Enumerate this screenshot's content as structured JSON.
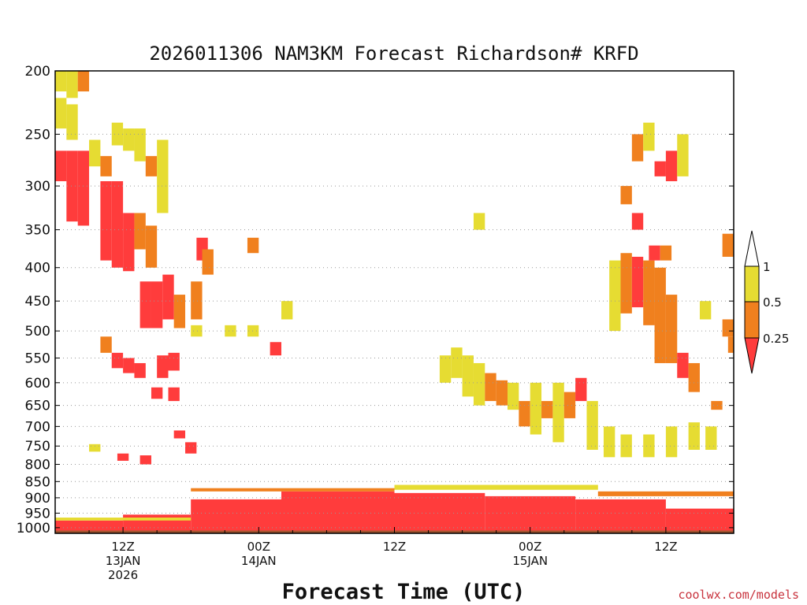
{
  "chart_data": {
    "type": "heatmap",
    "title": "2026011306 NAM3KM Forecast Richardson# KRFD",
    "xlabel": "Forecast Time (UTC)",
    "ylabel": "",
    "credit": "coolwx.com/models",
    "y_scale": "log-pressure",
    "y_axis_unit": "hPa",
    "ylim": [
      1020,
      200
    ],
    "xlim_hours": [
      0,
      60
    ],
    "grid": "dotted horizontal at pressure levels",
    "y_ticks": [
      200,
      250,
      300,
      350,
      400,
      450,
      500,
      550,
      600,
      650,
      700,
      750,
      800,
      850,
      900,
      950,
      1000
    ],
    "x_ticks": [
      {
        "hour": 6,
        "line1": "12Z",
        "line2": "13JAN",
        "line3": "2026"
      },
      {
        "hour": 18,
        "line1": "00Z",
        "line2": "14JAN",
        "line3": ""
      },
      {
        "hour": 30,
        "line1": "12Z",
        "line2": "",
        "line3": ""
      },
      {
        "hour": 42,
        "line1": "00Z",
        "line2": "15JAN",
        "line3": ""
      },
      {
        "hour": 54,
        "line1": "12Z",
        "line2": "",
        "line3": ""
      }
    ],
    "color_scale": {
      "orientation": "vertical",
      "placement": "right",
      "levels": [
        {
          "range": "< 0.25",
          "color": "#ff3c3c"
        },
        {
          "range": "0.25 - 0.5",
          "color": "#f0801e"
        },
        {
          "range": "0.5 - 1",
          "color": "#e6dc32"
        },
        {
          "range": "> 1",
          "color": "#ffffff"
        }
      ],
      "labels": [
        "1",
        "0.5",
        "0.25"
      ]
    },
    "ground_color": "#a0522d",
    "cells": [
      {
        "t": 0.5,
        "p0": 200,
        "p1": 215,
        "v": "y"
      },
      {
        "t": 1.5,
        "p0": 200,
        "p1": 220,
        "v": "y"
      },
      {
        "t": 2.5,
        "p0": 200,
        "p1": 215,
        "v": "o"
      },
      {
        "t": 0.5,
        "p0": 220,
        "p1": 245,
        "v": "y"
      },
      {
        "t": 1.5,
        "p0": 225,
        "p1": 255,
        "v": "y"
      },
      {
        "t": 0.5,
        "p0": 265,
        "p1": 295,
        "v": "r"
      },
      {
        "t": 1.5,
        "p0": 265,
        "p1": 340,
        "v": "r"
      },
      {
        "t": 2.5,
        "p0": 265,
        "p1": 345,
        "v": "r"
      },
      {
        "t": 3.5,
        "p0": 255,
        "p1": 280,
        "v": "y"
      },
      {
        "t": 4.5,
        "p0": 270,
        "p1": 290,
        "v": "o"
      },
      {
        "t": 4.5,
        "p0": 295,
        "p1": 390,
        "v": "r"
      },
      {
        "t": 5.5,
        "p0": 295,
        "p1": 400,
        "v": "r"
      },
      {
        "t": 6.5,
        "p0": 330,
        "p1": 405,
        "v": "r"
      },
      {
        "t": 7.5,
        "p0": 330,
        "p1": 375,
        "v": "o"
      },
      {
        "t": 8.5,
        "p0": 345,
        "p1": 400,
        "v": "o"
      },
      {
        "t": 5.5,
        "p0": 240,
        "p1": 260,
        "v": "y"
      },
      {
        "t": 6.5,
        "p0": 245,
        "p1": 265,
        "v": "y"
      },
      {
        "t": 7.5,
        "p0": 245,
        "p1": 275,
        "v": "y"
      },
      {
        "t": 8.5,
        "p0": 270,
        "p1": 290,
        "v": "o"
      },
      {
        "t": 9.5,
        "p0": 255,
        "p1": 330,
        "v": "y"
      },
      {
        "t": 8.0,
        "p0": 420,
        "p1": 495,
        "v": "r"
      },
      {
        "t": 9.0,
        "p0": 420,
        "p1": 495,
        "v": "r"
      },
      {
        "t": 10.0,
        "p0": 410,
        "p1": 480,
        "v": "r"
      },
      {
        "t": 11.0,
        "p0": 440,
        "p1": 495,
        "v": "o"
      },
      {
        "t": 12.5,
        "p0": 420,
        "p1": 480,
        "v": "o"
      },
      {
        "t": 13.0,
        "p0": 360,
        "p1": 390,
        "v": "r"
      },
      {
        "t": 13.5,
        "p0": 375,
        "p1": 410,
        "v": "o"
      },
      {
        "t": 17.5,
        "p0": 360,
        "p1": 380,
        "v": "o"
      },
      {
        "t": 12.5,
        "p0": 490,
        "p1": 510,
        "v": "y"
      },
      {
        "t": 15.5,
        "p0": 490,
        "p1": 510,
        "v": "y"
      },
      {
        "t": 17.5,
        "p0": 490,
        "p1": 510,
        "v": "y"
      },
      {
        "t": 20.5,
        "p0": 450,
        "p1": 480,
        "v": "y"
      },
      {
        "t": 19.5,
        "p0": 520,
        "p1": 545,
        "v": "r"
      },
      {
        "t": 4.5,
        "p0": 510,
        "p1": 540,
        "v": "o"
      },
      {
        "t": 5.5,
        "p0": 540,
        "p1": 570,
        "v": "r"
      },
      {
        "t": 6.5,
        "p0": 550,
        "p1": 580,
        "v": "r"
      },
      {
        "t": 7.5,
        "p0": 560,
        "p1": 590,
        "v": "r"
      },
      {
        "t": 9.5,
        "p0": 545,
        "p1": 590,
        "v": "r"
      },
      {
        "t": 10.5,
        "p0": 540,
        "p1": 575,
        "v": "r"
      },
      {
        "t": 9.0,
        "p0": 610,
        "p1": 635,
        "v": "r"
      },
      {
        "t": 10.5,
        "p0": 610,
        "p1": 640,
        "v": "r"
      },
      {
        "t": 11.0,
        "p0": 710,
        "p1": 730,
        "v": "r"
      },
      {
        "t": 12.0,
        "p0": 740,
        "p1": 770,
        "v": "r"
      },
      {
        "t": 8.0,
        "p0": 775,
        "p1": 800,
        "v": "r"
      },
      {
        "t": 6.0,
        "p0": 770,
        "p1": 790,
        "v": "r"
      },
      {
        "t": 3.5,
        "p0": 745,
        "p1": 765,
        "v": "y"
      },
      {
        "t": 34.5,
        "p0": 545,
        "p1": 600,
        "v": "y"
      },
      {
        "t": 35.5,
        "p0": 530,
        "p1": 590,
        "v": "y"
      },
      {
        "t": 36.5,
        "p0": 545,
        "p1": 630,
        "v": "y"
      },
      {
        "t": 37.5,
        "p0": 560,
        "p1": 650,
        "v": "y"
      },
      {
        "t": 38.5,
        "p0": 580,
        "p1": 640,
        "v": "o"
      },
      {
        "t": 39.5,
        "p0": 595,
        "p1": 650,
        "v": "o"
      },
      {
        "t": 40.5,
        "p0": 600,
        "p1": 660,
        "v": "y"
      },
      {
        "t": 41.5,
        "p0": 640,
        "p1": 700,
        "v": "o"
      },
      {
        "t": 42.5,
        "p0": 600,
        "p1": 720,
        "v": "y"
      },
      {
        "t": 43.5,
        "p0": 640,
        "p1": 680,
        "v": "o"
      },
      {
        "t": 44.5,
        "p0": 600,
        "p1": 740,
        "v": "y"
      },
      {
        "t": 45.5,
        "p0": 620,
        "p1": 680,
        "v": "o"
      },
      {
        "t": 46.5,
        "p0": 590,
        "p1": 640,
        "v": "r"
      },
      {
        "t": 47.5,
        "p0": 640,
        "p1": 760,
        "v": "y"
      },
      {
        "t": 49.0,
        "p0": 700,
        "p1": 780,
        "v": "y"
      },
      {
        "t": 50.5,
        "p0": 720,
        "p1": 780,
        "v": "y"
      },
      {
        "t": 52.5,
        "p0": 720,
        "p1": 780,
        "v": "y"
      },
      {
        "t": 54.5,
        "p0": 700,
        "p1": 780,
        "v": "y"
      },
      {
        "t": 56.5,
        "p0": 690,
        "p1": 760,
        "v": "y"
      },
      {
        "t": 58.0,
        "p0": 700,
        "p1": 760,
        "v": "y"
      },
      {
        "t": 37.5,
        "p0": 330,
        "p1": 350,
        "v": "y"
      },
      {
        "t": 51.5,
        "p0": 250,
        "p1": 275,
        "v": "o"
      },
      {
        "t": 52.5,
        "p0": 240,
        "p1": 265,
        "v": "y"
      },
      {
        "t": 53.5,
        "p0": 275,
        "p1": 290,
        "v": "r"
      },
      {
        "t": 54.5,
        "p0": 265,
        "p1": 295,
        "v": "r"
      },
      {
        "t": 55.5,
        "p0": 250,
        "p1": 290,
        "v": "y"
      },
      {
        "t": 51.5,
        "p0": 330,
        "p1": 350,
        "v": "r"
      },
      {
        "t": 50.5,
        "p0": 300,
        "p1": 320,
        "v": "o"
      },
      {
        "t": 49.5,
        "p0": 390,
        "p1": 500,
        "v": "y"
      },
      {
        "t": 50.5,
        "p0": 380,
        "p1": 470,
        "v": "o"
      },
      {
        "t": 51.5,
        "p0": 385,
        "p1": 460,
        "v": "r"
      },
      {
        "t": 52.5,
        "p0": 390,
        "p1": 490,
        "v": "o"
      },
      {
        "t": 53.5,
        "p0": 400,
        "p1": 560,
        "v": "o"
      },
      {
        "t": 54.5,
        "p0": 440,
        "p1": 560,
        "v": "o"
      },
      {
        "t": 55.5,
        "p0": 540,
        "p1": 590,
        "v": "r"
      },
      {
        "t": 56.5,
        "p0": 560,
        "p1": 620,
        "v": "o"
      },
      {
        "t": 53.0,
        "p0": 370,
        "p1": 390,
        "v": "r"
      },
      {
        "t": 54.0,
        "p0": 370,
        "p1": 390,
        "v": "o"
      },
      {
        "t": 57.5,
        "p0": 450,
        "p1": 480,
        "v": "y"
      },
      {
        "t": 59.5,
        "p0": 480,
        "p1": 510,
        "v": "o"
      },
      {
        "t": 60.0,
        "p0": 510,
        "p1": 540,
        "v": "o"
      },
      {
        "t": 58.5,
        "p0": 640,
        "p1": 660,
        "v": "o"
      },
      {
        "t": 59.5,
        "p0": 355,
        "p1": 385,
        "v": "o"
      }
    ],
    "low_bands": [
      {
        "t0": 0,
        "t1": 6,
        "p_top": 975,
        "p_bot": 1010,
        "v": "r"
      },
      {
        "t0": 6,
        "t1": 12,
        "p_top": 955,
        "p_bot": 1010,
        "v": "r"
      },
      {
        "t0": 12,
        "t1": 20,
        "p_top": 905,
        "p_bot": 1010,
        "v": "r"
      },
      {
        "t0": 20,
        "t1": 30,
        "p_top": 880,
        "p_bot": 1010,
        "v": "r"
      },
      {
        "t0": 30,
        "t1": 38,
        "p_top": 885,
        "p_bot": 1010,
        "v": "r"
      },
      {
        "t0": 38,
        "t1": 46,
        "p_top": 895,
        "p_bot": 1010,
        "v": "r"
      },
      {
        "t0": 46,
        "t1": 54,
        "p_top": 905,
        "p_bot": 1010,
        "v": "r"
      },
      {
        "t0": 54,
        "t1": 60,
        "p_top": 935,
        "p_bot": 1010,
        "v": "r"
      },
      {
        "t0": 0,
        "t1": 12,
        "p_top": 965,
        "p_bot": 975,
        "v": "y"
      },
      {
        "t0": 12,
        "t1": 30,
        "p_top": 870,
        "p_bot": 880,
        "v": "o"
      },
      {
        "t0": 30,
        "t1": 48,
        "p_top": 860,
        "p_bot": 875,
        "v": "y"
      },
      {
        "t0": 48,
        "t1": 60,
        "p_top": 880,
        "p_bot": 895,
        "v": "o"
      }
    ]
  }
}
